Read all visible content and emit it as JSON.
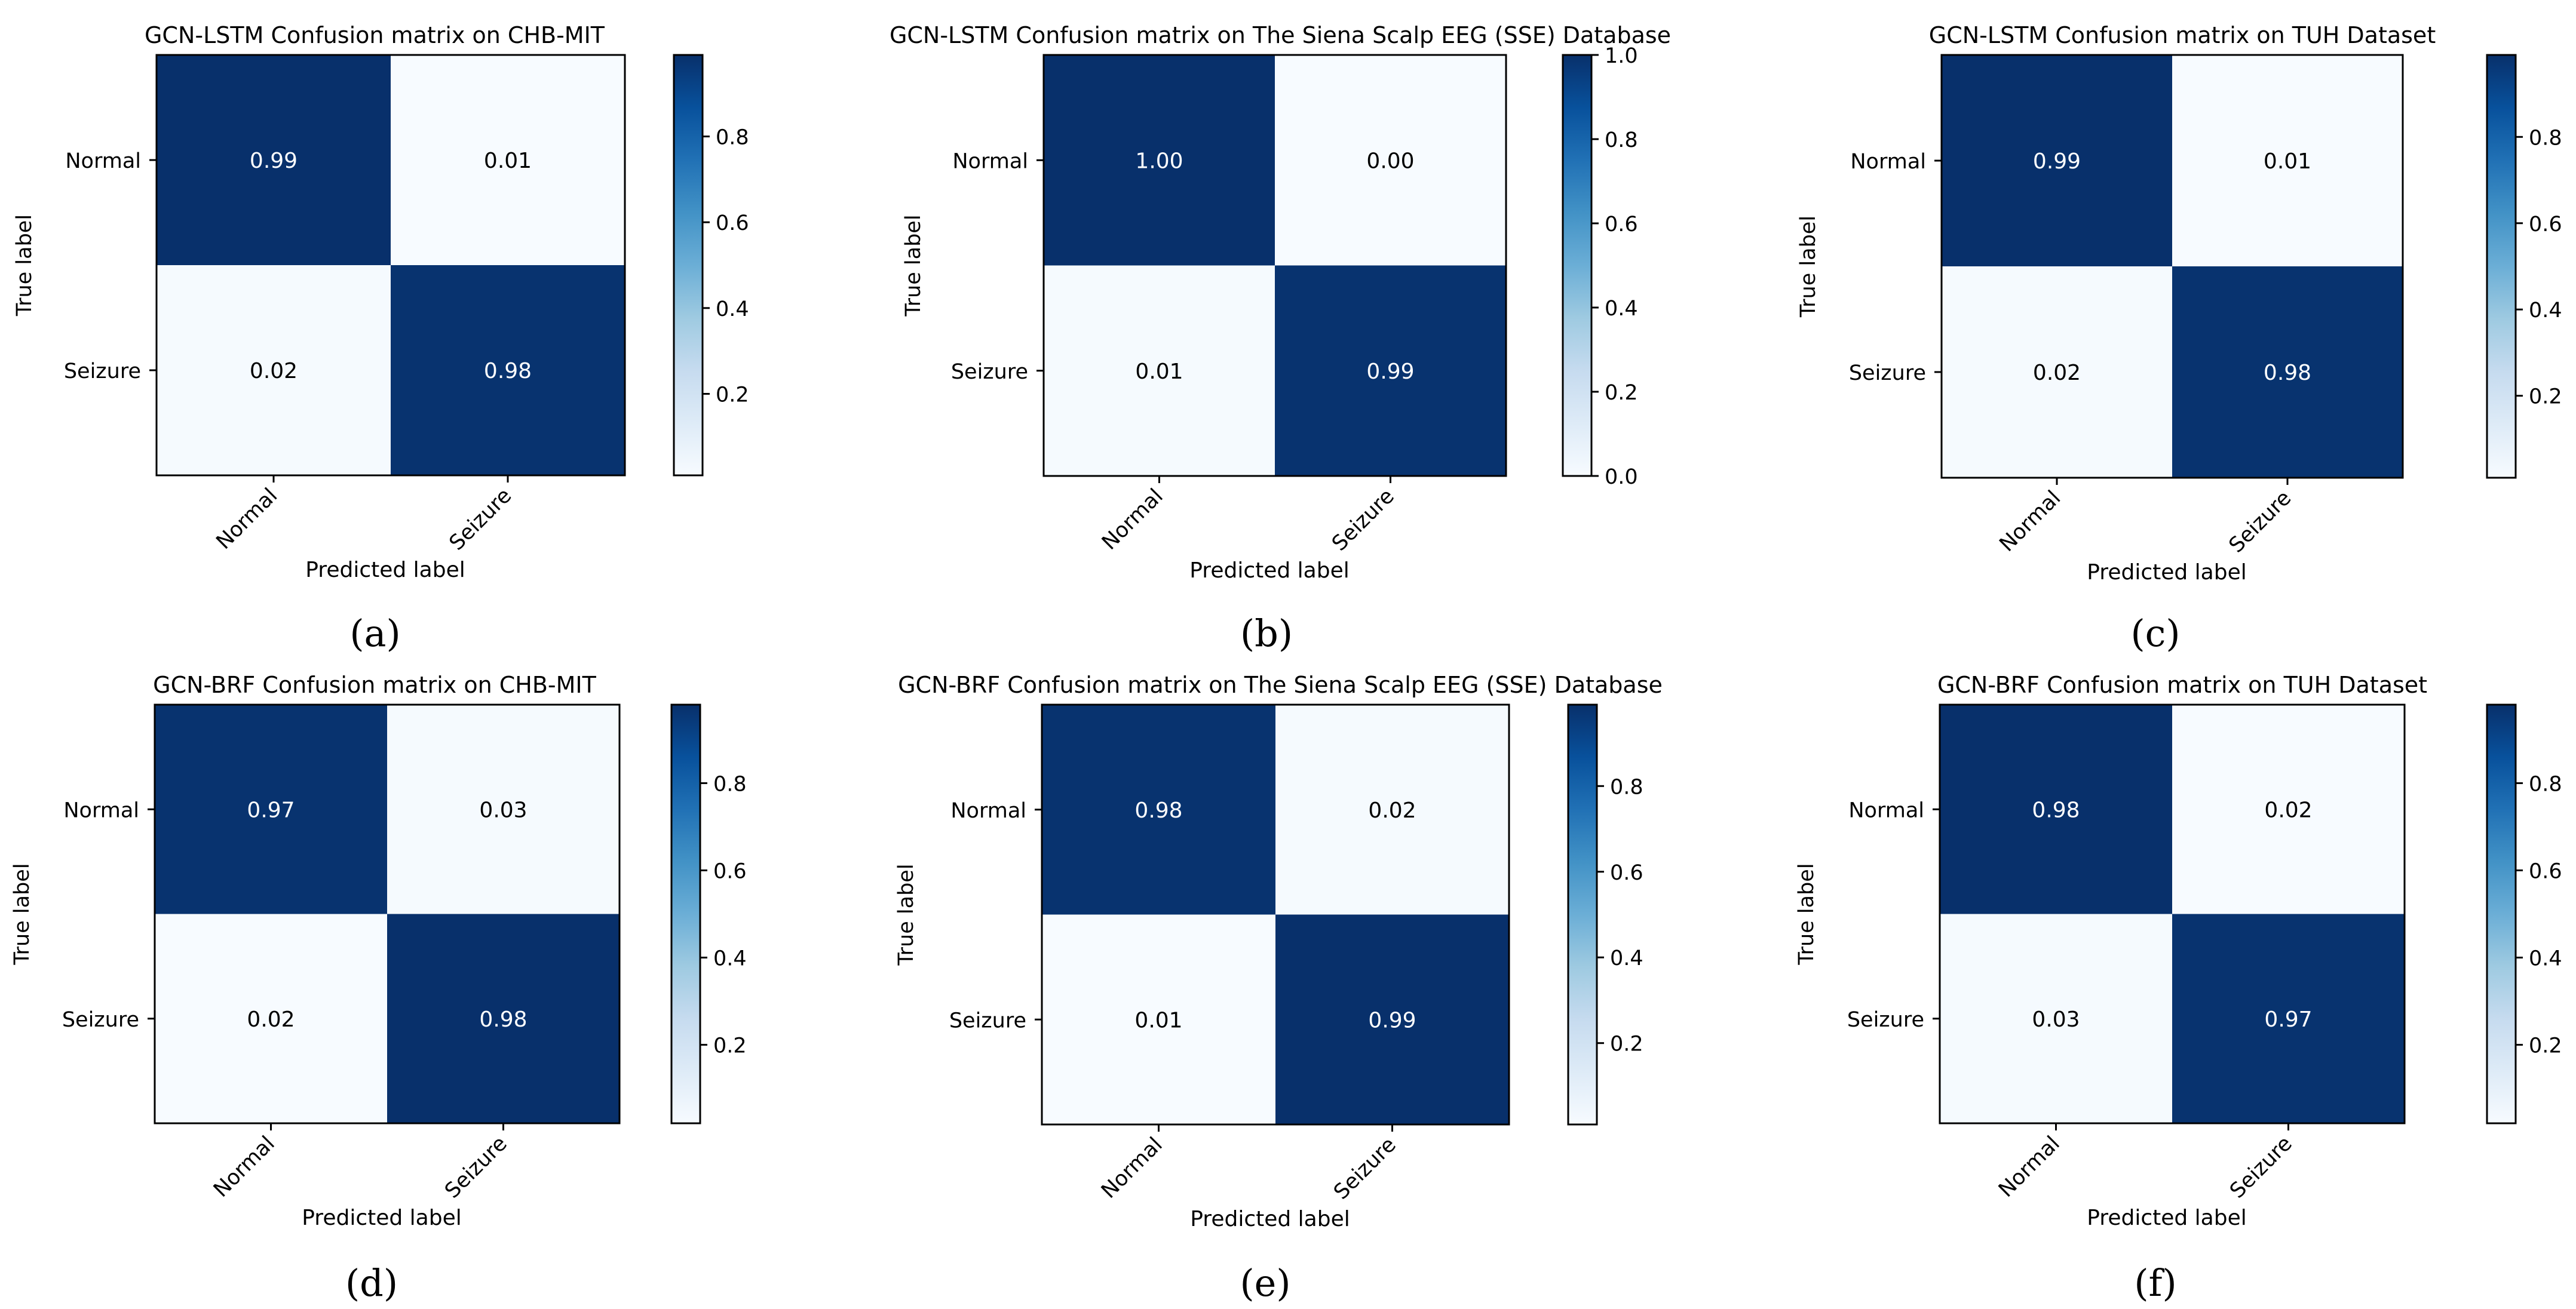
{
  "figure": {
    "captions": [
      "(a)",
      "(b)",
      "(c)",
      "(d)",
      "(e)",
      "(f)"
    ]
  },
  "chart_data": [
    {
      "type": "heatmap",
      "panel": "(a)",
      "title": "GCN-LSTM Confusion matrix on CHB-MIT",
      "xlabel": "Predicted label",
      "ylabel": "True label",
      "x_categories": [
        "Normal",
        "Seizure"
      ],
      "y_categories": [
        "Normal",
        "Seizure"
      ],
      "values": [
        [
          0.99,
          0.01
        ],
        [
          0.02,
          0.98
        ]
      ],
      "cell_labels": [
        [
          "0.99",
          "0.01"
        ],
        [
          "0.02",
          "0.98"
        ]
      ],
      "colormap": "Blues",
      "colorbar": {
        "range": [
          0.01,
          0.99
        ],
        "ticks": [
          0.2,
          0.4,
          0.6,
          0.8
        ],
        "tick_labels": [
          "0.2",
          "0.4",
          "0.6",
          "0.8"
        ]
      }
    },
    {
      "type": "heatmap",
      "panel": "(b)",
      "title": "GCN-LSTM Confusion matrix on The Siena Scalp EEG (SSE) Database",
      "xlabel": "Predicted label",
      "ylabel": "True label",
      "x_categories": [
        "Normal",
        "Seizure"
      ],
      "y_categories": [
        "Normal",
        "Seizure"
      ],
      "values": [
        [
          1.0,
          0.0
        ],
        [
          0.01,
          0.99
        ]
      ],
      "cell_labels": [
        [
          "1.00",
          "0.00"
        ],
        [
          "0.01",
          "0.99"
        ]
      ],
      "colormap": "Blues",
      "colorbar": {
        "range": [
          0.0,
          1.0
        ],
        "ticks": [
          0.0,
          0.2,
          0.4,
          0.6,
          0.8,
          1.0
        ],
        "tick_labels": [
          "0.0",
          "0.2",
          "0.4",
          "0.6",
          "0.8",
          "1.0"
        ]
      }
    },
    {
      "type": "heatmap",
      "panel": "(c)",
      "title": "GCN-LSTM Confusion matrix on TUH Dataset",
      "xlabel": "Predicted label",
      "ylabel": "True label",
      "x_categories": [
        "Normal",
        "Seizure"
      ],
      "y_categories": [
        "Normal",
        "Seizure"
      ],
      "values": [
        [
          0.99,
          0.01
        ],
        [
          0.02,
          0.98
        ]
      ],
      "cell_labels": [
        [
          "0.99",
          "0.01"
        ],
        [
          "0.02",
          "0.98"
        ]
      ],
      "colormap": "Blues",
      "colorbar": {
        "range": [
          0.01,
          0.99
        ],
        "ticks": [
          0.2,
          0.4,
          0.6,
          0.8
        ],
        "tick_labels": [
          "0.2",
          "0.4",
          "0.6",
          "0.8"
        ]
      }
    },
    {
      "type": "heatmap",
      "panel": "(d)",
      "title": "GCN-BRF Confusion matrix on CHB-MIT",
      "xlabel": "Predicted label",
      "ylabel": "True label",
      "x_categories": [
        "Normal",
        "Seizure"
      ],
      "y_categories": [
        "Normal",
        "Seizure"
      ],
      "values": [
        [
          0.97,
          0.03
        ],
        [
          0.02,
          0.98
        ]
      ],
      "cell_labels": [
        [
          "0.97",
          "0.03"
        ],
        [
          "0.02",
          "0.98"
        ]
      ],
      "colormap": "Blues",
      "colorbar": {
        "range": [
          0.02,
          0.98
        ],
        "ticks": [
          0.2,
          0.4,
          0.6,
          0.8
        ],
        "tick_labels": [
          "0.2",
          "0.4",
          "0.6",
          "0.8"
        ]
      }
    },
    {
      "type": "heatmap",
      "panel": "(e)",
      "title": "GCN-BRF Confusion matrix on The Siena Scalp EEG (SSE) Database",
      "xlabel": "Predicted label",
      "ylabel": "True label",
      "x_categories": [
        "Normal",
        "Seizure"
      ],
      "y_categories": [
        "Normal",
        "Seizure"
      ],
      "values": [
        [
          0.98,
          0.02
        ],
        [
          0.01,
          0.99
        ]
      ],
      "cell_labels": [
        [
          "0.98",
          "0.02"
        ],
        [
          "0.01",
          "0.99"
        ]
      ],
      "colormap": "Blues",
      "colorbar": {
        "range": [
          0.01,
          0.99
        ],
        "ticks": [
          0.2,
          0.4,
          0.6,
          0.8
        ],
        "tick_labels": [
          "0.2",
          "0.4",
          "0.6",
          "0.8"
        ]
      }
    },
    {
      "type": "heatmap",
      "panel": "(f)",
      "title": "GCN-BRF Confusion matrix on TUH Dataset",
      "xlabel": "Predicted label",
      "ylabel": "True label",
      "x_categories": [
        "Normal",
        "Seizure"
      ],
      "y_categories": [
        "Normal",
        "Seizure"
      ],
      "values": [
        [
          0.98,
          0.02
        ],
        [
          0.03,
          0.97
        ]
      ],
      "cell_labels": [
        [
          "0.98",
          "0.02"
        ],
        [
          "0.03",
          "0.97"
        ]
      ],
      "colormap": "Blues",
      "colorbar": {
        "range": [
          0.02,
          0.98
        ],
        "ticks": [
          0.2,
          0.4,
          0.6,
          0.8
        ],
        "tick_labels": [
          "0.2",
          "0.4",
          "0.6",
          "0.8"
        ]
      }
    }
  ]
}
